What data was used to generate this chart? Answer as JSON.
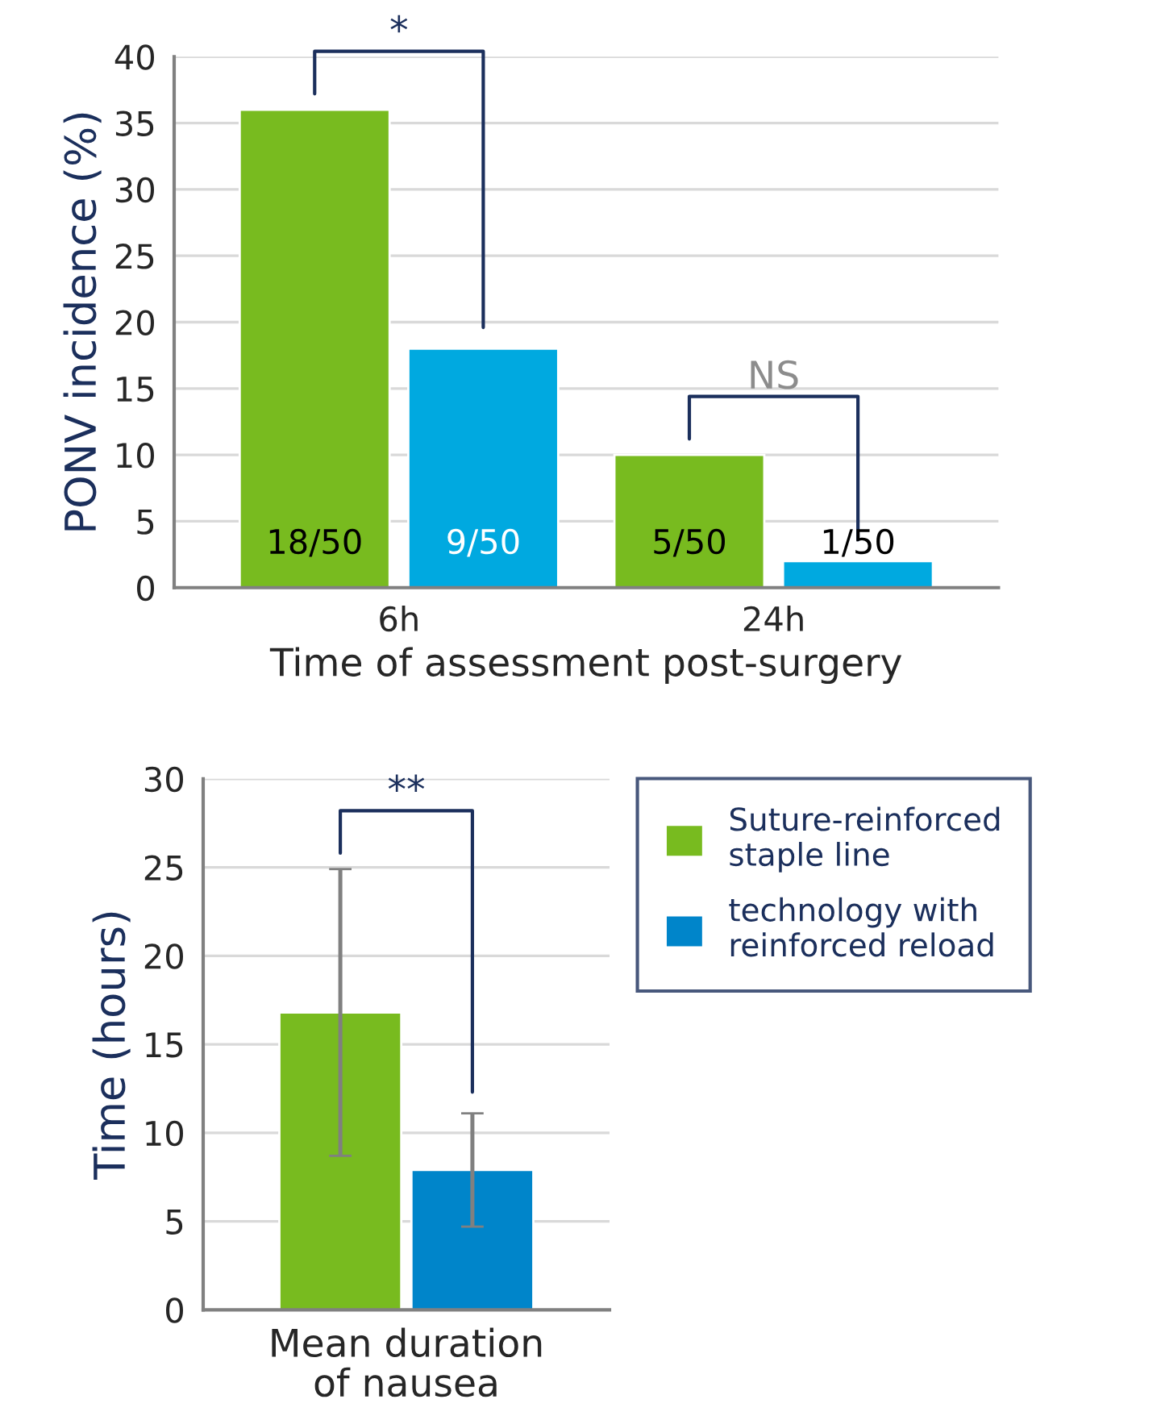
{
  "chart_data": [
    {
      "type": "bar",
      "ylabel": "PONV incidence (%)",
      "xlabel": "Time of assessment post-surgery",
      "categories": [
        "6h",
        "24h"
      ],
      "series": [
        {
          "color": "#78bb1f",
          "values": [
            36,
            10
          ],
          "value_labels": [
            "18/50",
            "5/50"
          ]
        },
        {
          "color": "#00a9e0",
          "values": [
            18,
            2
          ],
          "value_labels": [
            "9/50",
            "1/50"
          ]
        }
      ],
      "annotations": [
        "*",
        "NS"
      ],
      "ylim": [
        0,
        40
      ],
      "yticks": [
        0,
        5,
        10,
        15,
        20,
        25,
        30,
        35,
        40
      ],
      "grid": "y",
      "legend": false
    },
    {
      "type": "bar",
      "ylabel": "Time (hours)",
      "categories": [
        "Mean duration of nausea"
      ],
      "series": [
        {
          "name": "Suture-reinforced staple line",
          "color": "#78bb1f",
          "values": [
            16.8
          ],
          "errors": [
            [
              8.7,
              24.9
            ]
          ]
        },
        {
          "name": "technology with reinforced reload",
          "color": "#0085ca",
          "values": [
            7.9
          ],
          "errors": [
            [
              4.7,
              11.1
            ]
          ]
        }
      ],
      "annotations": [
        "**"
      ],
      "ylim": [
        0,
        30
      ],
      "yticks": [
        0,
        5,
        10,
        15,
        20,
        25,
        30
      ],
      "grid": "y",
      "legend": "top right"
    }
  ]
}
